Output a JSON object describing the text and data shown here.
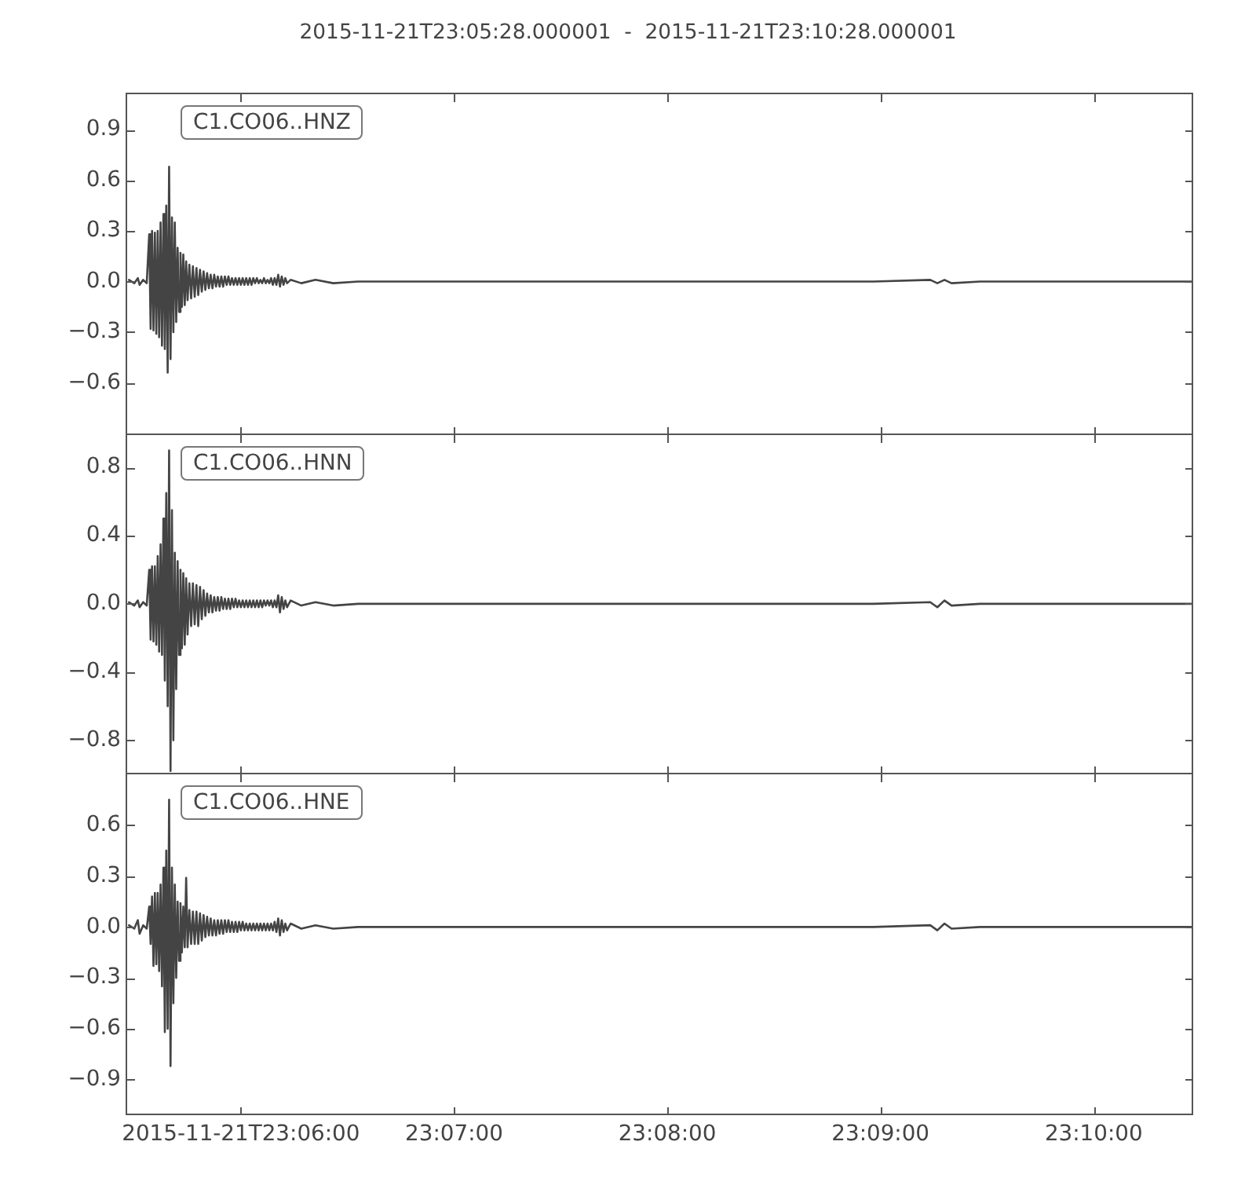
{
  "chart_data": [
    {
      "type": "line",
      "title": "2015-11-21T23:05:28.000001  -  2015-11-21T23:10:28.000001",
      "x": [
        "2015-11-21T23:05:28.5",
        "2015-11-21T23:05:30",
        "2015-11-21T23:05:31",
        "2015-11-21T23:05:31.5",
        "2015-11-21T23:05:32.5",
        "2015-11-21T23:05:33.5",
        "2015-11-21T23:05:34.2",
        "2015-11-21T23:05:34.6",
        "2015-11-21T23:05:35",
        "2015-11-21T23:05:35.4",
        "2015-11-21T23:05:35.8",
        "2015-11-21T23:05:36.2",
        "2015-11-21T23:05:36.6",
        "2015-11-21T23:05:37",
        "2015-11-21T23:05:37.4",
        "2015-11-21T23:05:37.8",
        "2015-11-21T23:05:38.2",
        "2015-11-21T23:05:38.6",
        "2015-11-21T23:05:39",
        "2015-11-21T23:05:39.4",
        "2015-11-21T23:05:39.8",
        "2015-11-21T23:05:40.2",
        "2015-11-21T23:05:40.6",
        "2015-11-21T23:05:41",
        "2015-11-21T23:05:41.4",
        "2015-11-21T23:05:41.8",
        "2015-11-21T23:05:42.2",
        "2015-11-21T23:05:42.6",
        "2015-11-21T23:05:43",
        "2015-11-21T23:05:43.4",
        "2015-11-21T23:05:43.8",
        "2015-11-21T23:05:44.2",
        "2015-11-21T23:05:44.6",
        "2015-11-21T23:05:45",
        "2015-11-21T23:05:45.5",
        "2015-11-21T23:05:46",
        "2015-11-21T23:05:46.5",
        "2015-11-21T23:05:47",
        "2015-11-21T23:05:47.5",
        "2015-11-21T23:05:48",
        "2015-11-21T23:05:48.5",
        "2015-11-21T23:05:49",
        "2015-11-21T23:05:49.5",
        "2015-11-21T23:05:50",
        "2015-11-21T23:05:50.5",
        "2015-11-21T23:05:51",
        "2015-11-21T23:05:51.5",
        "2015-11-21T23:05:52",
        "2015-11-21T23:05:52.5",
        "2015-11-21T23:05:53",
        "2015-11-21T23:05:53.5",
        "2015-11-21T23:05:54",
        "2015-11-21T23:05:54.5",
        "2015-11-21T23:05:55",
        "2015-11-21T23:05:55.5",
        "2015-11-21T23:05:56",
        "2015-11-21T23:05:56.5",
        "2015-11-21T23:05:57",
        "2015-11-21T23:05:57.5",
        "2015-11-21T23:05:58",
        "2015-11-21T23:05:58.5",
        "2015-11-21T23:05:59",
        "2015-11-21T23:05:59.5",
        "2015-11-21T23:06:00",
        "2015-11-21T23:06:00.5",
        "2015-11-21T23:06:01",
        "2015-11-21T23:06:01.5",
        "2015-11-21T23:06:02",
        "2015-11-21T23:06:02.5",
        "2015-11-21T23:06:03",
        "2015-11-21T23:06:03.5",
        "2015-11-21T23:06:04",
        "2015-11-21T23:06:04.5",
        "2015-11-21T23:06:05",
        "2015-11-21T23:06:05.5",
        "2015-11-21T23:06:06",
        "2015-11-21T23:06:06.5",
        "2015-11-21T23:06:07",
        "2015-11-21T23:06:07.5",
        "2015-11-21T23:06:08",
        "2015-11-21T23:06:08.5",
        "2015-11-21T23:06:09",
        "2015-11-21T23:06:09.5",
        "2015-11-21T23:06:10",
        "2015-11-21T23:06:10.5",
        "2015-11-21T23:06:11",
        "2015-11-21T23:06:11.5",
        "2015-11-21T23:06:12",
        "2015-11-21T23:06:12.5",
        "2015-11-21T23:06:13",
        "2015-11-21T23:06:14",
        "2015-11-21T23:06:17",
        "2015-11-21T23:06:21",
        "2015-11-21T23:06:26",
        "2015-11-21T23:06:33",
        "2015-11-21T23:06:48",
        "2015-11-21T23:07:08",
        "2015-11-21T23:07:38",
        "2015-11-21T23:08:08",
        "2015-11-21T23:08:38",
        "2015-11-21T23:08:58",
        "2015-11-21T23:09:14",
        "2015-11-21T23:09:16",
        "2015-11-21T23:09:18",
        "2015-11-21T23:09:20",
        "2015-11-21T23:09:28",
        "2015-11-21T23:09:58",
        "2015-11-21T23:10:27.5"
      ],
      "series": [
        {
          "color": "#444444",
          "values": [
            0.01,
            -0.01,
            0.02,
            -0.02,
            0.01,
            -0.01,
            0.28,
            -0.28,
            0.3,
            -0.29,
            0.29,
            -0.31,
            0.3,
            -0.33,
            0.35,
            -0.38,
            0.4,
            -0.4,
            0.45,
            -0.54,
            0.68,
            -0.46,
            0.38,
            -0.3,
            0.35,
            -0.24,
            0.2,
            -0.18,
            0.17,
            -0.15,
            0.16,
            -0.14,
            0.12,
            -0.11,
            0.1,
            -0.1,
            0.09,
            -0.09,
            0.08,
            -0.08,
            0.07,
            -0.06,
            0.06,
            -0.05,
            0.05,
            -0.04,
            0.04,
            -0.04,
            0.04,
            -0.03,
            0.03,
            -0.03,
            0.03,
            -0.03,
            0.03,
            -0.02,
            0.03,
            -0.02,
            0.02,
            -0.02,
            0.02,
            -0.02,
            0.02,
            -0.02,
            0.02,
            -0.02,
            0.02,
            -0.02,
            0.02,
            -0.02,
            0.02,
            -0.01,
            0.02,
            -0.01,
            0.01,
            -0.01,
            0.02,
            -0.01,
            0.01,
            -0.01,
            0.02,
            -0.02,
            0.02,
            -0.02,
            0.04,
            -0.03,
            0.03,
            -0.02,
            0.02,
            -0.01,
            0.01,
            -0.01,
            0.01,
            -0.01,
            0,
            0,
            0,
            0,
            0,
            0,
            0,
            0.01,
            -0.01,
            0.01,
            -0.01,
            0,
            0,
            0
          ]
        }
      ],
      "xlim": [
        "2015-11-21T23:05:28",
        "2015-11-21T23:10:28"
      ],
      "xticks": [
        {
          "value": "2015-11-21T23:06:00",
          "label": null
        },
        {
          "value": "2015-11-21T23:07:00",
          "label": null
        },
        {
          "value": "2015-11-21T23:08:00",
          "label": null
        },
        {
          "value": "2015-11-21T23:09:00",
          "label": null
        },
        {
          "value": "2015-11-21T23:10:00",
          "label": null
        }
      ],
      "ylim": [
        -0.91,
        1.11
      ],
      "yticks": [
        {
          "value": -0.6,
          "label": "−0.6"
        },
        {
          "value": -0.3,
          "label": "−0.3"
        },
        {
          "value": 0,
          "label": "0.0"
        },
        0.3,
        0.6,
        0.9
      ],
      "annotations": [
        "C1.CO06..HNZ"
      ],
      "tick_labels": "y"
    },
    {
      "type": "line",
      "x": [
        "2015-11-21T23:05:28.5",
        "2015-11-21T23:05:30",
        "2015-11-21T23:05:31",
        "2015-11-21T23:05:31.5",
        "2015-11-21T23:05:32.5",
        "2015-11-21T23:05:33.5",
        "2015-11-21T23:05:34.2",
        "2015-11-21T23:05:34.6",
        "2015-11-21T23:05:35",
        "2015-11-21T23:05:35.4",
        "2015-11-21T23:05:35.8",
        "2015-11-21T23:05:36.2",
        "2015-11-21T23:05:36.6",
        "2015-11-21T23:05:37",
        "2015-11-21T23:05:37.4",
        "2015-11-21T23:05:37.8",
        "2015-11-21T23:05:38.2",
        "2015-11-21T23:05:38.6",
        "2015-11-21T23:05:39",
        "2015-11-21T23:05:39.4",
        "2015-11-21T23:05:39.8",
        "2015-11-21T23:05:40.2",
        "2015-11-21T23:05:40.6",
        "2015-11-21T23:05:41",
        "2015-11-21T23:05:41.4",
        "2015-11-21T23:05:41.8",
        "2015-11-21T23:05:42.2",
        "2015-11-21T23:05:42.6",
        "2015-11-21T23:05:43",
        "2015-11-21T23:05:43.4",
        "2015-11-21T23:05:43.8",
        "2015-11-21T23:05:44.2",
        "2015-11-21T23:05:44.6",
        "2015-11-21T23:05:45",
        "2015-11-21T23:05:45.5",
        "2015-11-21T23:05:46",
        "2015-11-21T23:05:46.5",
        "2015-11-21T23:05:47",
        "2015-11-21T23:05:47.5",
        "2015-11-21T23:05:48",
        "2015-11-21T23:05:48.5",
        "2015-11-21T23:05:49",
        "2015-11-21T23:05:49.5",
        "2015-11-21T23:05:50",
        "2015-11-21T23:05:50.5",
        "2015-11-21T23:05:51",
        "2015-11-21T23:05:51.5",
        "2015-11-21T23:05:52",
        "2015-11-21T23:05:52.5",
        "2015-11-21T23:05:53",
        "2015-11-21T23:05:53.5",
        "2015-11-21T23:05:54",
        "2015-11-21T23:05:54.5",
        "2015-11-21T23:05:55",
        "2015-11-21T23:05:55.5",
        "2015-11-21T23:05:56",
        "2015-11-21T23:05:56.5",
        "2015-11-21T23:05:57",
        "2015-11-21T23:05:57.5",
        "2015-11-21T23:05:58",
        "2015-11-21T23:05:58.5",
        "2015-11-21T23:05:59",
        "2015-11-21T23:05:59.5",
        "2015-11-21T23:06:00",
        "2015-11-21T23:06:00.5",
        "2015-11-21T23:06:01",
        "2015-11-21T23:06:01.5",
        "2015-11-21T23:06:02",
        "2015-11-21T23:06:02.5",
        "2015-11-21T23:06:03",
        "2015-11-21T23:06:03.5",
        "2015-11-21T23:06:04",
        "2015-11-21T23:06:04.5",
        "2015-11-21T23:06:05",
        "2015-11-21T23:06:05.5",
        "2015-11-21T23:06:06",
        "2015-11-21T23:06:06.5",
        "2015-11-21T23:06:07",
        "2015-11-21T23:06:07.5",
        "2015-11-21T23:06:08",
        "2015-11-21T23:06:08.5",
        "2015-11-21T23:06:09",
        "2015-11-21T23:06:09.5",
        "2015-11-21T23:06:10",
        "2015-11-21T23:06:10.5",
        "2015-11-21T23:06:11",
        "2015-11-21T23:06:11.5",
        "2015-11-21T23:06:12",
        "2015-11-21T23:06:12.5",
        "2015-11-21T23:06:13",
        "2015-11-21T23:06:14",
        "2015-11-21T23:06:17",
        "2015-11-21T23:06:21",
        "2015-11-21T23:06:26",
        "2015-11-21T23:06:33",
        "2015-11-21T23:06:48",
        "2015-11-21T23:07:08",
        "2015-11-21T23:07:38",
        "2015-11-21T23:08:08",
        "2015-11-21T23:08:38",
        "2015-11-21T23:08:58",
        "2015-11-21T23:09:14",
        "2015-11-21T23:09:16",
        "2015-11-21T23:09:18",
        "2015-11-21T23:09:20",
        "2015-11-21T23:09:28",
        "2015-11-21T23:09:58",
        "2015-11-21T23:10:27.5"
      ],
      "series": [
        {
          "color": "#444444",
          "values": [
            0.01,
            -0.01,
            0.02,
            -0.02,
            0.01,
            -0.01,
            0.2,
            -0.21,
            0.22,
            -0.22,
            0.22,
            -0.24,
            0.28,
            -0.28,
            0.35,
            -0.3,
            0.5,
            -0.45,
            0.65,
            -0.6,
            0.9,
            -0.98,
            0.55,
            -0.8,
            0.3,
            -0.5,
            0.25,
            -0.3,
            0.2,
            -0.26,
            0.18,
            -0.24,
            0.15,
            -0.18,
            0.12,
            -0.13,
            0.12,
            -0.12,
            0.11,
            -0.13,
            0.1,
            -0.09,
            0.08,
            -0.07,
            0.06,
            -0.05,
            0.05,
            -0.05,
            0.04,
            -0.04,
            0.04,
            -0.04,
            0.04,
            -0.03,
            0.03,
            -0.03,
            0.03,
            -0.03,
            0.03,
            -0.02,
            0.03,
            -0.02,
            0.02,
            -0.02,
            0.02,
            -0.02,
            0.02,
            -0.02,
            0.02,
            -0.02,
            0.02,
            -0.02,
            0.02,
            -0.02,
            0.02,
            -0.02,
            0.02,
            -0.01,
            0.02,
            -0.01,
            0.02,
            -0.02,
            0.02,
            -0.02,
            0.05,
            -0.05,
            0.04,
            -0.03,
            0.02,
            -0.02,
            0.02,
            -0.01,
            0.01,
            -0.01,
            0,
            0,
            0,
            0,
            0,
            0,
            0,
            0.01,
            -0.02,
            0.02,
            -0.01,
            0,
            0,
            0
          ]
        }
      ],
      "xlim": [
        "2015-11-21T23:05:28",
        "2015-11-21T23:10:28"
      ],
      "xticks": [
        {
          "value": "2015-11-21T23:06:00",
          "label": null
        },
        {
          "value": "2015-11-21T23:07:00",
          "label": null
        },
        {
          "value": "2015-11-21T23:08:00",
          "label": null
        },
        {
          "value": "2015-11-21T23:09:00",
          "label": null
        },
        {
          "value": "2015-11-21T23:10:00",
          "label": null
        }
      ],
      "ylim": [
        -1.0,
        0.99
      ],
      "yticks": [
        {
          "value": -0.8,
          "label": "−0.8"
        },
        {
          "value": -0.4,
          "label": "−0.4"
        },
        {
          "value": 0,
          "label": "0.0"
        },
        0.4,
        0.8
      ],
      "annotations": [
        "C1.CO06..HNN"
      ],
      "tick_labels": "y"
    },
    {
      "type": "line",
      "x": [
        "2015-11-21T23:05:28.5",
        "2015-11-21T23:05:30",
        "2015-11-21T23:05:31",
        "2015-11-21T23:05:31.5",
        "2015-11-21T23:05:32.5",
        "2015-11-21T23:05:33.5",
        "2015-11-21T23:05:34.2",
        "2015-11-21T23:05:34.6",
        "2015-11-21T23:05:35",
        "2015-11-21T23:05:35.4",
        "2015-11-21T23:05:35.8",
        "2015-11-21T23:05:36.2",
        "2015-11-21T23:05:36.6",
        "2015-11-21T23:05:37",
        "2015-11-21T23:05:37.4",
        "2015-11-21T23:05:37.8",
        "2015-11-21T23:05:38.2",
        "2015-11-21T23:05:38.6",
        "2015-11-21T23:05:39",
        "2015-11-21T23:05:39.4",
        "2015-11-21T23:05:39.8",
        "2015-11-21T23:05:40.2",
        "2015-11-21T23:05:40.6",
        "2015-11-21T23:05:41",
        "2015-11-21T23:05:41.4",
        "2015-11-21T23:05:41.8",
        "2015-11-21T23:05:42.2",
        "2015-11-21T23:05:42.6",
        "2015-11-21T23:05:43",
        "2015-11-21T23:05:43.4",
        "2015-11-21T23:05:43.8",
        "2015-11-21T23:05:44.2",
        "2015-11-21T23:05:44.6",
        "2015-11-21T23:05:45",
        "2015-11-21T23:05:45.5",
        "2015-11-21T23:05:46",
        "2015-11-21T23:05:46.5",
        "2015-11-21T23:05:47",
        "2015-11-21T23:05:47.5",
        "2015-11-21T23:05:48",
        "2015-11-21T23:05:48.5",
        "2015-11-21T23:05:49",
        "2015-11-21T23:05:49.5",
        "2015-11-21T23:05:50",
        "2015-11-21T23:05:50.5",
        "2015-11-21T23:05:51",
        "2015-11-21T23:05:51.5",
        "2015-11-21T23:05:52",
        "2015-11-21T23:05:52.5",
        "2015-11-21T23:05:53",
        "2015-11-21T23:05:53.5",
        "2015-11-21T23:05:54",
        "2015-11-21T23:05:54.5",
        "2015-11-21T23:05:55",
        "2015-11-21T23:05:55.5",
        "2015-11-21T23:05:56",
        "2015-11-21T23:05:56.5",
        "2015-11-21T23:05:57",
        "2015-11-21T23:05:57.5",
        "2015-11-21T23:05:58",
        "2015-11-21T23:05:58.5",
        "2015-11-21T23:05:59",
        "2015-11-21T23:05:59.5",
        "2015-11-21T23:06:00",
        "2015-11-21T23:06:00.5",
        "2015-11-21T23:06:01",
        "2015-11-21T23:06:01.5",
        "2015-11-21T23:06:02",
        "2015-11-21T23:06:02.5",
        "2015-11-21T23:06:03",
        "2015-11-21T23:06:03.5",
        "2015-11-21T23:06:04",
        "2015-11-21T23:06:04.5",
        "2015-11-21T23:06:05",
        "2015-11-21T23:06:05.5",
        "2015-11-21T23:06:06",
        "2015-11-21T23:06:06.5",
        "2015-11-21T23:06:07",
        "2015-11-21T23:06:07.5",
        "2015-11-21T23:06:08",
        "2015-11-21T23:06:08.5",
        "2015-11-21T23:06:09",
        "2015-11-21T23:06:09.5",
        "2015-11-21T23:06:10",
        "2015-11-21T23:06:10.5",
        "2015-11-21T23:06:11",
        "2015-11-21T23:06:11.5",
        "2015-11-21T23:06:12",
        "2015-11-21T23:06:12.5",
        "2015-11-21T23:06:13",
        "2015-11-21T23:06:14",
        "2015-11-21T23:06:17",
        "2015-11-21T23:06:21",
        "2015-11-21T23:06:26",
        "2015-11-21T23:06:33",
        "2015-11-21T23:06:48",
        "2015-11-21T23:07:08",
        "2015-11-21T23:07:38",
        "2015-11-21T23:08:08",
        "2015-11-21T23:08:38",
        "2015-11-21T23:08:58",
        "2015-11-21T23:09:14",
        "2015-11-21T23:09:16",
        "2015-11-21T23:09:18",
        "2015-11-21T23:09:20",
        "2015-11-21T23:09:28",
        "2015-11-21T23:09:58",
        "2015-11-21T23:10:27.5"
      ],
      "series": [
        {
          "color": "#444444",
          "values": [
            0.01,
            -0.01,
            0.04,
            -0.04,
            0.01,
            -0.01,
            0.12,
            -0.1,
            0.18,
            -0.23,
            0.2,
            -0.22,
            0.2,
            -0.26,
            0.25,
            -0.35,
            0.35,
            -0.62,
            0.45,
            -0.6,
            0.75,
            -0.82,
            0.35,
            -0.45,
            0.25,
            -0.3,
            0.15,
            -0.2,
            0.14,
            -0.15,
            0.12,
            -0.12,
            0.29,
            -0.12,
            0.1,
            -0.1,
            0.09,
            -0.1,
            0.09,
            -0.1,
            0.08,
            -0.08,
            0.07,
            -0.06,
            0.06,
            -0.05,
            0.05,
            -0.05,
            0.04,
            -0.05,
            0.04,
            -0.04,
            0.04,
            -0.04,
            0.04,
            -0.03,
            0.04,
            -0.03,
            0.03,
            -0.03,
            0.03,
            -0.03,
            0.03,
            -0.02,
            0.03,
            -0.02,
            0.02,
            -0.02,
            0.02,
            -0.02,
            0.02,
            -0.02,
            0.02,
            -0.02,
            0.02,
            -0.02,
            0.02,
            -0.02,
            0.02,
            -0.02,
            0.02,
            -0.02,
            0.03,
            -0.03,
            0.05,
            -0.05,
            0.04,
            -0.03,
            0.02,
            -0.02,
            0.02,
            -0.01,
            0.01,
            -0.01,
            0,
            0,
            0,
            0,
            0,
            0,
            0,
            0.01,
            -0.02,
            0.02,
            -0.01,
            0,
            0,
            0
          ]
        }
      ],
      "xlim": [
        "2015-11-21T23:05:28",
        "2015-11-21T23:10:28"
      ],
      "xticks": [
        {
          "value": "2015-11-21T23:06:00",
          "label": "2015-11-21T23:06:00"
        },
        {
          "value": "2015-11-21T23:07:00",
          "label": "23:07:00"
        },
        {
          "value": "2015-11-21T23:08:00",
          "label": "23:08:00"
        },
        {
          "value": "2015-11-21T23:09:00",
          "label": "23:09:00"
        },
        {
          "value": "2015-11-21T23:10:00",
          "label": "23:10:00"
        }
      ],
      "ylim": [
        -1.11,
        0.9
      ],
      "yticks": [
        {
          "value": -0.9,
          "label": "−0.9"
        },
        {
          "value": -0.6,
          "label": "−0.6"
        },
        {
          "value": -0.3,
          "label": "−0.3"
        },
        {
          "value": 0,
          "label": "0.0"
        },
        0.3,
        0.6
      ],
      "annotations": [
        "C1.CO06..HNE"
      ]
    }
  ]
}
